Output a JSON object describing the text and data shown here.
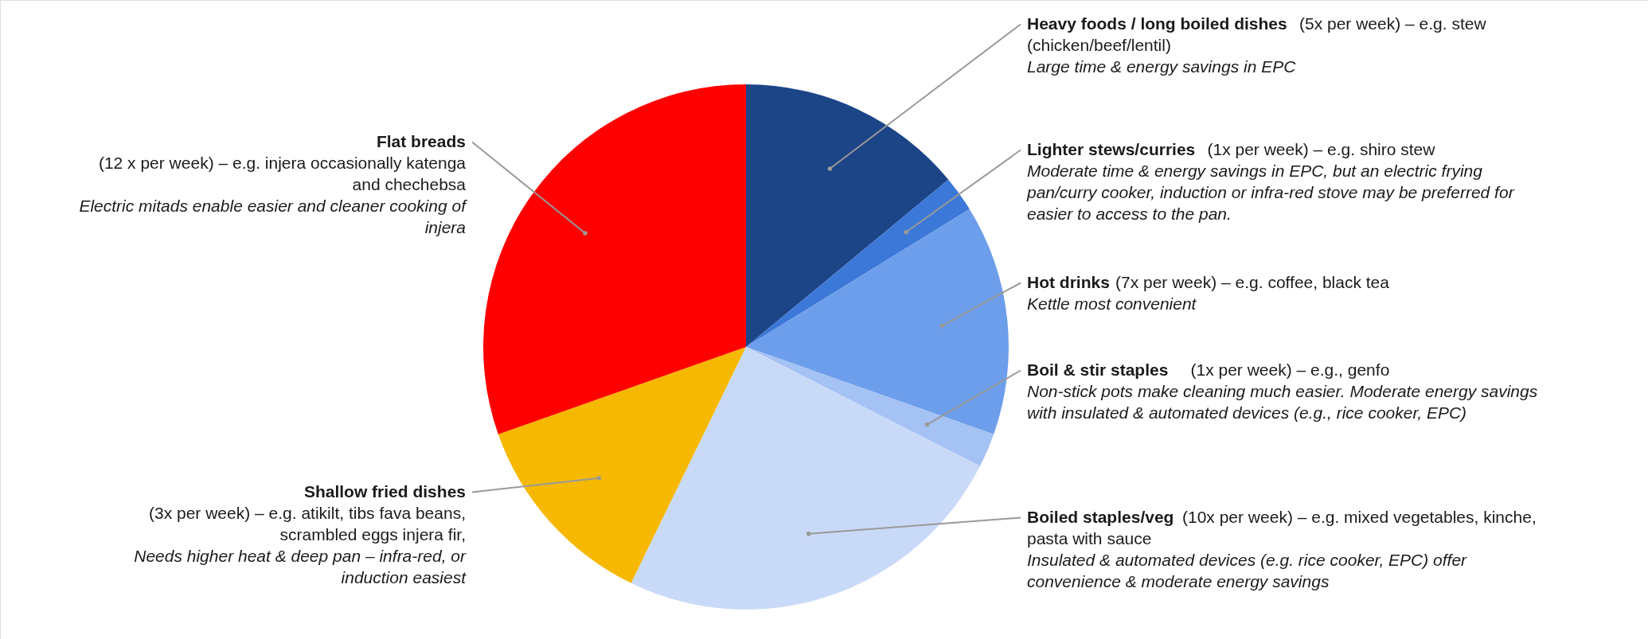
{
  "chart_data": {
    "type": "pie",
    "categories": [
      "Heavy foods / long boiled dishes",
      "Lighter stews/curries",
      "Hot drinks",
      "Boil & stir staples",
      "Boiled staples/veg",
      "Shallow fried dishes",
      "Flat breads"
    ],
    "values": [
      14,
      2.2,
      14.2,
      2.1,
      24.7,
      12.4,
      30.4
    ],
    "colors": [
      "#1c4587",
      "#3c78d8",
      "#6d9eeb",
      "#a4c2f4",
      "#c9daf8",
      "#f6b800",
      "#ff0000"
    ],
    "annotations": [
      "(5x per week) – e.g. stew (chicken/beef/lentil)",
      "Large time & energy savings in EPC",
      "(1x per week) – e.g. shiro stew",
      "Moderate time & energy savings in EPC, but an electric frying pan/curry cooker, induction or infra-red stove may be preferred for easier to access to the pan.",
      "(7x per week) – e.g. coffee, black tea",
      "Kettle most convenient",
      "(1x per week) – e.g., genfo",
      "Non-stick pots make cleaning much easier. Moderate energy savings with insulated & automated devices (e.g., rice cooker, EPC)",
      "(10x per week) – e.g. mixed vegetables, kinche, pasta with sauce",
      "Insulated & automated devices (e.g. rice cooker, EPC) offer convenience & moderate energy savings",
      "(3x per week) – e.g. atikilt, tibs fava beans, scrambled eggs injera fir,",
      "Needs higher heat & deep pan – infra-red, or induction easiest",
      "(12 x per week) – e.g. injera occasionally katenga and chechebsa",
      "Electric mitads enable easier and cleaner cooking of injera"
    ]
  }
}
